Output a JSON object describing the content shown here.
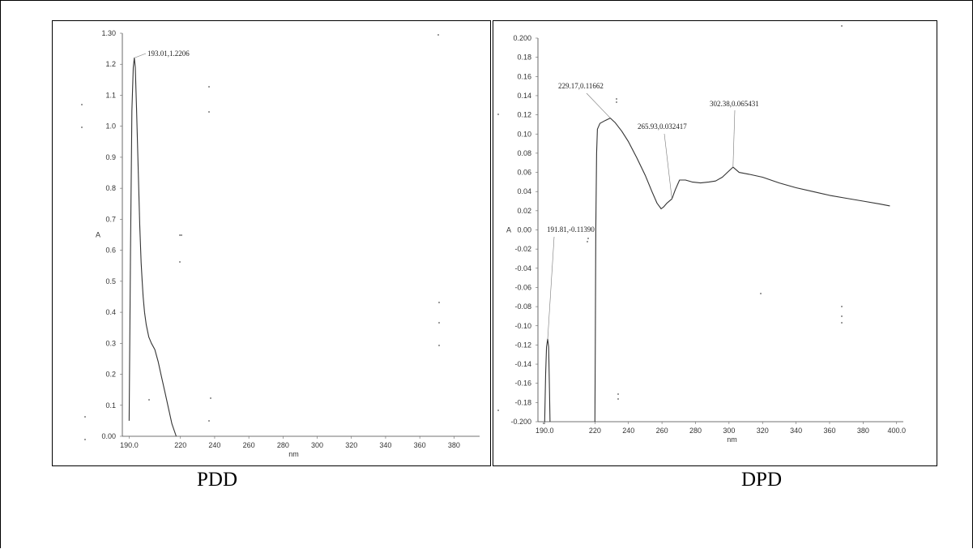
{
  "captions": {
    "left": "PDD",
    "right": "DPD"
  },
  "chart_data": [
    {
      "type": "line",
      "title": "",
      "xlabel": "nm",
      "ylabel": "A",
      "xlim": [
        186,
        395
      ],
      "ylim": [
        0.0,
        1.3
      ],
      "x_ticks": [
        {
          "v": 190,
          "label": "190.0"
        },
        {
          "v": 220,
          "label": "220"
        },
        {
          "v": 240,
          "label": "240"
        },
        {
          "v": 260,
          "label": "260"
        },
        {
          "v": 280,
          "label": "280"
        },
        {
          "v": 300,
          "label": "300"
        },
        {
          "v": 320,
          "label": "320"
        },
        {
          "v": 340,
          "label": "340"
        },
        {
          "v": 360,
          "label": "360"
        },
        {
          "v": 380,
          "label": "380"
        }
      ],
      "y_ticks": [
        {
          "v": 0.0,
          "label": "0.00"
        },
        {
          "v": 0.1,
          "label": "0.1"
        },
        {
          "v": 0.2,
          "label": "0.2"
        },
        {
          "v": 0.3,
          "label": "0.3"
        },
        {
          "v": 0.4,
          "label": "0.4"
        },
        {
          "v": 0.5,
          "label": "0.5"
        },
        {
          "v": 0.6,
          "label": "0.6"
        },
        {
          "v": 0.7,
          "label": "0.7"
        },
        {
          "v": 0.8,
          "label": "0.8"
        },
        {
          "v": 0.9,
          "label": "0.9"
        },
        {
          "v": 1.0,
          "label": "1.0"
        },
        {
          "v": 1.1,
          "label": "1.1"
        },
        {
          "v": 1.2,
          "label": "1.2"
        },
        {
          "v": 1.3,
          "label": "1.30"
        }
      ],
      "series": [
        {
          "x": [
            190.0,
            190.8,
            191.6,
            192.4,
            193.01,
            193.6,
            194.3,
            195.2,
            196.2,
            197.0,
            197.6,
            198.2,
            199.0,
            200.0,
            201.5,
            203.0,
            205.0,
            207.0,
            209.0,
            211.0,
            213.0,
            215.0,
            217.5
          ],
          "y": [
            0.05,
            0.6,
            1.05,
            1.19,
            1.2206,
            1.19,
            1.06,
            0.88,
            0.68,
            0.56,
            0.5,
            0.45,
            0.4,
            0.36,
            0.32,
            0.3,
            0.28,
            0.24,
            0.19,
            0.14,
            0.09,
            0.04,
            0.0
          ]
        }
      ],
      "annotations": [
        {
          "text": "193.01,1.2206",
          "x": 193.01,
          "y": 1.2206
        }
      ]
    },
    {
      "type": "line",
      "title": "",
      "xlabel": "nm",
      "ylabel": "A",
      "xlim": [
        186,
        404
      ],
      "ylim": [
        -0.2,
        0.2
      ],
      "x_ticks": [
        {
          "v": 190,
          "label": "190.0"
        },
        {
          "v": 220,
          "label": "220"
        },
        {
          "v": 240,
          "label": "240"
        },
        {
          "v": 260,
          "label": "260"
        },
        {
          "v": 280,
          "label": "280"
        },
        {
          "v": 300,
          "label": "300"
        },
        {
          "v": 320,
          "label": "320"
        },
        {
          "v": 340,
          "label": "340"
        },
        {
          "v": 360,
          "label": "360"
        },
        {
          "v": 380,
          "label": "380"
        },
        {
          "v": 400,
          "label": "400.0"
        }
      ],
      "y_ticks": [
        {
          "v": -0.2,
          "label": "-0.200"
        },
        {
          "v": -0.18,
          "label": "-0.18"
        },
        {
          "v": -0.16,
          "label": "-0.16"
        },
        {
          "v": -0.14,
          "label": "-0.14"
        },
        {
          "v": -0.12,
          "label": "-0.12"
        },
        {
          "v": -0.1,
          "label": "-0.10"
        },
        {
          "v": -0.08,
          "label": "-0.08"
        },
        {
          "v": -0.06,
          "label": "-0.06"
        },
        {
          "v": -0.04,
          "label": "-0.04"
        },
        {
          "v": -0.02,
          "label": "-0.02"
        },
        {
          "v": 0.0,
          "label": "0.00"
        },
        {
          "v": 0.02,
          "label": "0.02"
        },
        {
          "v": 0.04,
          "label": "0.04"
        },
        {
          "v": 0.06,
          "label": "0.06"
        },
        {
          "v": 0.08,
          "label": "0.08"
        },
        {
          "v": 0.1,
          "label": "0.10"
        },
        {
          "v": 0.12,
          "label": "0.12"
        },
        {
          "v": 0.14,
          "label": "0.14"
        },
        {
          "v": 0.16,
          "label": "0.16"
        },
        {
          "v": 0.18,
          "label": "0.18"
        },
        {
          "v": 0.2,
          "label": "0.200"
        }
      ],
      "series": [
        {
          "x": [
            190.0,
            190.6,
            191.1,
            191.81,
            192.4,
            192.9,
            193.2
          ],
          "y": [
            -0.2,
            -0.15,
            -0.122,
            -0.1139,
            -0.122,
            -0.17,
            -0.2
          ]
        },
        {
          "x": [
            220.0,
            220.2,
            220.5,
            221.0,
            221.5,
            223.0,
            226.0,
            229.17,
            232.0,
            236.0,
            240.0,
            245.0,
            250.0,
            254.0,
            257.0,
            259.5,
            261.0,
            263.0,
            265.93,
            268.0,
            270.5,
            274.0,
            278.0,
            283.0,
            288.0,
            292.0,
            296.0,
            299.0,
            302.38,
            306.0,
            312.0,
            320.0,
            330.0,
            340.0,
            350.0,
            360.0,
            370.0,
            380.0,
            390.0,
            396.0
          ],
          "y": [
            -0.2,
            -0.12,
            0.0,
            0.08,
            0.105,
            0.111,
            0.114,
            0.11662,
            0.112,
            0.103,
            0.092,
            0.075,
            0.057,
            0.04,
            0.028,
            0.022,
            0.024,
            0.028,
            0.032417,
            0.042,
            0.052,
            0.052,
            0.05,
            0.049,
            0.05,
            0.051,
            0.055,
            0.06,
            0.065431,
            0.06,
            0.058,
            0.055,
            0.049,
            0.044,
            0.04,
            0.036,
            0.033,
            0.03,
            0.027,
            0.025
          ]
        }
      ],
      "annotations": [
        {
          "text": "229.17,0.11662",
          "x": 229.17,
          "y": 0.11662
        },
        {
          "text": "265.93,0.032417",
          "x": 265.93,
          "y": 0.032417
        },
        {
          "text": "302.38,0.065431",
          "x": 302.38,
          "y": 0.065431
        },
        {
          "text": "191.81,-0.11390",
          "x": 191.81,
          "y": -0.1139
        }
      ]
    }
  ]
}
